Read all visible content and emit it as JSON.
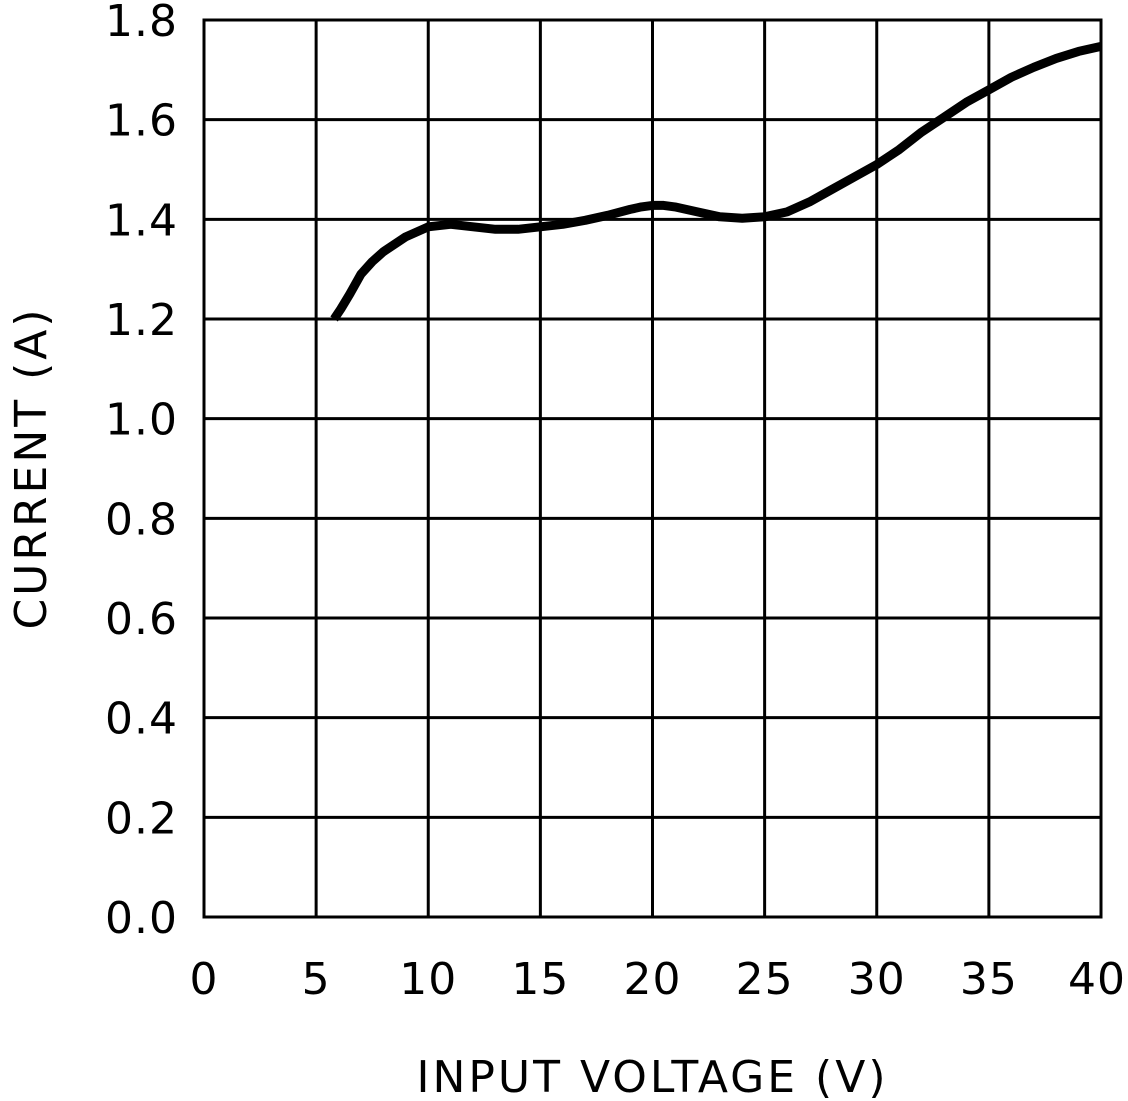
{
  "chart_data": {
    "type": "line",
    "title": "",
    "xlabel": "INPUT VOLTAGE (V)",
    "ylabel": "CURRENT (A)",
    "xlim": [
      0,
      40
    ],
    "ylim": [
      0.0,
      1.8
    ],
    "x_ticks": [
      "0",
      "5",
      "10",
      "15",
      "20",
      "25",
      "30",
      "35",
      "40"
    ],
    "y_ticks": [
      "0.0",
      "0.2",
      "0.4",
      "0.6",
      "0.8",
      "1.0",
      "1.2",
      "1.4",
      "1.6",
      "1.8"
    ],
    "grid": true,
    "legend": "none",
    "line_color": "#000000",
    "series": [
      {
        "x": [
          5.8,
          6.1,
          6.5,
          7.0,
          7.5,
          8.0,
          9.0,
          10.0,
          11.0,
          12.0,
          13.0,
          14.0,
          15.0,
          16.0,
          17.0,
          18.0,
          19.0,
          19.5,
          20.0,
          20.5,
          21.0,
          22.0,
          23.0,
          24.0,
          25.0,
          26.0,
          27.0,
          28.0,
          29.0,
          30.0,
          31.0,
          32.0,
          33.0,
          34.0,
          35.0,
          36.0,
          37.0,
          38.0,
          39.0,
          40.0
        ],
        "y": [
          1.2,
          1.22,
          1.25,
          1.29,
          1.315,
          1.335,
          1.365,
          1.385,
          1.39,
          1.385,
          1.38,
          1.38,
          1.385,
          1.39,
          1.398,
          1.408,
          1.42,
          1.425,
          1.428,
          1.428,
          1.425,
          1.415,
          1.405,
          1.402,
          1.405,
          1.415,
          1.435,
          1.46,
          1.485,
          1.51,
          1.54,
          1.575,
          1.605,
          1.635,
          1.66,
          1.685,
          1.705,
          1.723,
          1.737,
          1.747
        ]
      }
    ]
  }
}
